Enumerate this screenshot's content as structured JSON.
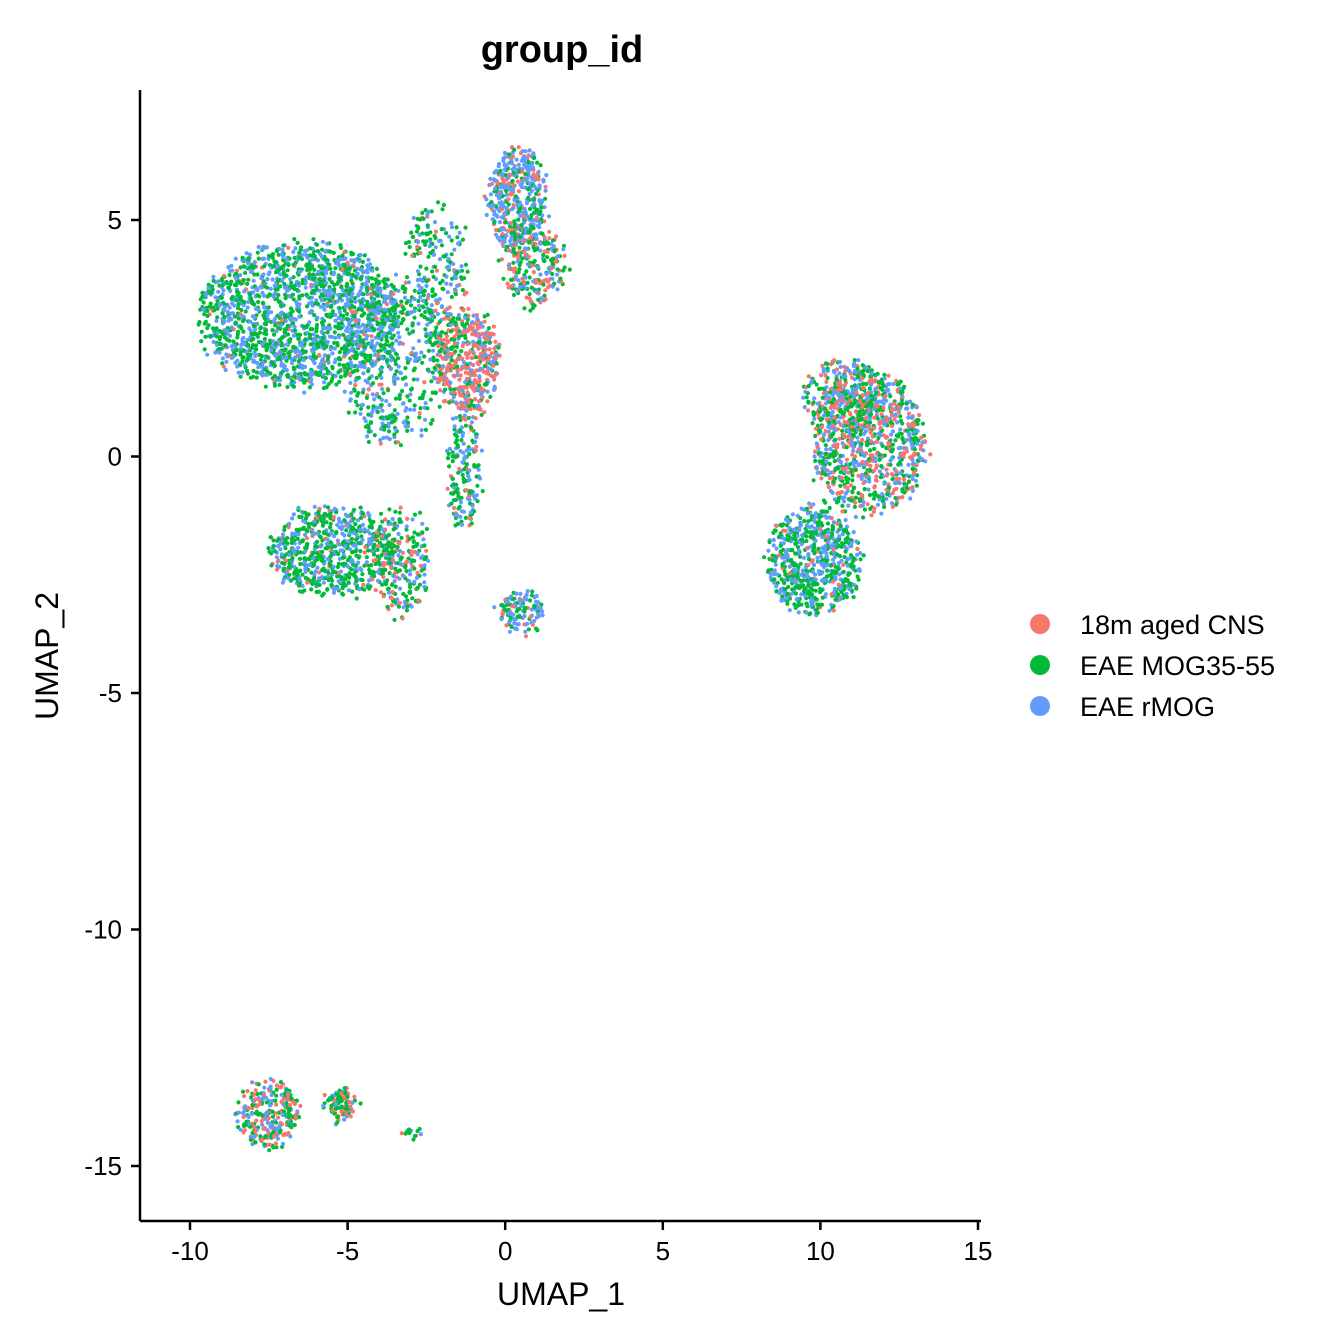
{
  "chart_data": {
    "type": "scatter",
    "title": "group_id",
    "xlabel": "UMAP_1",
    "ylabel": "UMAP_2",
    "xlim": [
      -11.5,
      15.0
    ],
    "ylim": [
      -16.0,
      7.7
    ],
    "x_ticks": [
      -10,
      -5,
      0,
      5,
      10,
      15
    ],
    "y_ticks": [
      -15,
      -10,
      -5,
      0,
      5
    ],
    "x_tick_labels": [
      "-10",
      "-5",
      "0",
      "5",
      "10",
      "15"
    ],
    "y_tick_labels": [
      "-15",
      "-10",
      "-5",
      "0",
      "5"
    ],
    "grid": false,
    "legend_position": "right",
    "series": [
      {
        "name": "18m aged CNS",
        "color": "#F8766D"
      },
      {
        "name": "EAE MOG35-55",
        "color": "#00BA38"
      },
      {
        "name": "EAE rMOG",
        "color": "#619CFF"
      }
    ],
    "clusters": [
      {
        "cx": -6.5,
        "cy": 3.0,
        "rx": 3.2,
        "ry": 1.5,
        "n": 1700,
        "mix": [
          0.03,
          0.55,
          0.42
        ]
      },
      {
        "cx": -3.5,
        "cy": 2.0,
        "rx": 1.6,
        "ry": 1.8,
        "n": 450,
        "mix": [
          0.08,
          0.5,
          0.42
        ]
      },
      {
        "cx": -1.2,
        "cy": 2.0,
        "rx": 1.0,
        "ry": 1.1,
        "n": 450,
        "mix": [
          0.55,
          0.25,
          0.2
        ]
      },
      {
        "cx": 0.4,
        "cy": 5.4,
        "rx": 0.9,
        "ry": 1.1,
        "n": 450,
        "mix": [
          0.2,
          0.25,
          0.55
        ]
      },
      {
        "cx": 0.9,
        "cy": 4.0,
        "rx": 1.0,
        "ry": 0.8,
        "n": 220,
        "mix": [
          0.3,
          0.45,
          0.25
        ]
      },
      {
        "cx": -2.2,
        "cy": 4.0,
        "rx": 1.0,
        "ry": 1.3,
        "n": 200,
        "mix": [
          0.1,
          0.55,
          0.35
        ]
      },
      {
        "cx": -5.5,
        "cy": -2.0,
        "rx": 2.0,
        "ry": 0.9,
        "n": 650,
        "mix": [
          0.06,
          0.62,
          0.32
        ]
      },
      {
        "cx": -3.3,
        "cy": -2.2,
        "rx": 0.9,
        "ry": 1.1,
        "n": 250,
        "mix": [
          0.25,
          0.5,
          0.25
        ]
      },
      {
        "cx": -1.3,
        "cy": -0.3,
        "rx": 0.5,
        "ry": 1.2,
        "n": 160,
        "mix": [
          0.1,
          0.5,
          0.4
        ]
      },
      {
        "cx": 0.5,
        "cy": -3.3,
        "rx": 0.7,
        "ry": 0.4,
        "n": 120,
        "mix": [
          0.15,
          0.35,
          0.5
        ]
      },
      {
        "cx": 11.5,
        "cy": 0.3,
        "rx": 1.8,
        "ry": 1.5,
        "n": 900,
        "mix": [
          0.3,
          0.4,
          0.3
        ]
      },
      {
        "cx": 9.8,
        "cy": -2.2,
        "rx": 1.5,
        "ry": 1.1,
        "n": 650,
        "mix": [
          0.06,
          0.55,
          0.39
        ]
      },
      {
        "cx": 10.8,
        "cy": 1.3,
        "rx": 1.3,
        "ry": 0.7,
        "n": 250,
        "mix": [
          0.25,
          0.45,
          0.3
        ]
      },
      {
        "cx": -7.5,
        "cy": -13.9,
        "rx": 1.0,
        "ry": 0.7,
        "n": 260,
        "mix": [
          0.35,
          0.4,
          0.25
        ]
      },
      {
        "cx": -5.2,
        "cy": -13.7,
        "rx": 0.5,
        "ry": 0.3,
        "n": 90,
        "mix": [
          0.3,
          0.5,
          0.2
        ]
      },
      {
        "cx": -3.0,
        "cy": -14.3,
        "rx": 0.3,
        "ry": 0.1,
        "n": 12,
        "mix": [
          0.1,
          0.6,
          0.3
        ]
      }
    ]
  }
}
